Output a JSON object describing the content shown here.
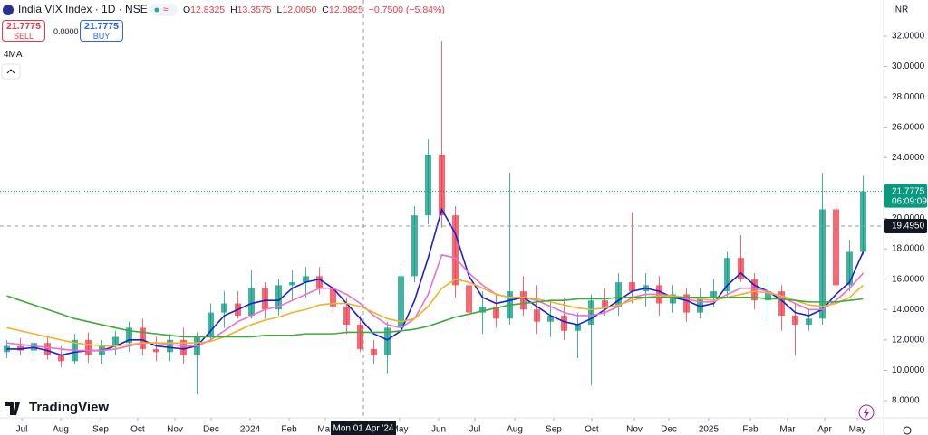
{
  "header": {
    "symbol": "India VIX Index · 1D · NSE",
    "ohlc": [
      {
        "label": "O",
        "value": "12.8325"
      },
      {
        "label": "H",
        "value": "13.3575"
      },
      {
        "label": "L",
        "value": "12.0050"
      },
      {
        "label": "C",
        "value": "12.0825"
      }
    ],
    "change": "−0.7500 (−5.84%)"
  },
  "trade": {
    "sell_price": "21.7775",
    "sell": "SELL",
    "spread": "0.0000",
    "buy_price": "21.7775",
    "buy": "BUY"
  },
  "indicator": "4MA",
  "currency": "INR",
  "logo": "TradingView",
  "chart_data": {
    "type": "candlestick",
    "up_color": "#089981",
    "down_color": "#f23645",
    "grid": false,
    "open": [
      11.2,
      11.6,
      11.3,
      11.8,
      11.0,
      10.6,
      12.0,
      11.0,
      11.6,
      11.8,
      12.8,
      11.4,
      11.2,
      12.0,
      11.0,
      12.2,
      13.8,
      14.4,
      13.6,
      15.4,
      14.0,
      15.6,
      15.8,
      16.2,
      15.4,
      14.2,
      13.0,
      11.4,
      11.0,
      12.8,
      16.2,
      20.2,
      24.2,
      20.2,
      15.6,
      13.8,
      14.2,
      13.4,
      15.2,
      14.0,
      13.2,
      13.6,
      12.6,
      13.0,
      14.6,
      14.2,
      15.8,
      15.2,
      15.6,
      14.4,
      15.0,
      13.8,
      14.8,
      15.2,
      17.4,
      16.0,
      14.6,
      15.2,
      13.6,
      13.0,
      13.4,
      20.6,
      15.6,
      17.8
    ],
    "high": [
      12.0,
      12.1,
      12.0,
      12.3,
      11.6,
      12.4,
      12.5,
      12.0,
      12.6,
      13.2,
      13.4,
      12.2,
      12.4,
      12.8,
      12.5,
      14.4,
      15.2,
      15.2,
      16.6,
      15.8,
      16.0,
      16.6,
      16.8,
      16.8,
      15.8,
      14.8,
      13.6,
      12.0,
      13.2,
      16.8,
      20.8,
      25.2,
      31.7,
      20.8,
      16.4,
      15.2,
      15.0,
      23.0,
      16.2,
      15.6,
      14.6,
      14.8,
      13.8,
      15.0,
      15.4,
      16.4,
      20.4,
      16.4,
      16.2,
      15.6,
      15.4,
      15.4,
      16.0,
      17.8,
      18.9,
      16.4,
      16.2,
      15.6,
      14.4,
      14.0,
      23.0,
      21.2,
      18.6,
      22.8
    ],
    "low": [
      10.8,
      11.0,
      10.8,
      10.7,
      10.2,
      10.4,
      10.5,
      10.4,
      11.0,
      11.2,
      11.0,
      10.6,
      10.6,
      10.4,
      8.4,
      12.0,
      12.8,
      13.4,
      13.4,
      13.4,
      13.6,
      14.6,
      14.8,
      15.0,
      13.6,
      12.4,
      11.2,
      10.4,
      9.8,
      12.6,
      15.8,
      19.6,
      19.4,
      14.8,
      13.2,
      12.4,
      12.8,
      13.0,
      13.6,
      12.4,
      12.2,
      12.0,
      10.8,
      9.0,
      13.6,
      13.6,
      14.4,
      14.2,
      13.6,
      13.8,
      13.2,
      13.4,
      14.2,
      14.8,
      15.8,
      14.0,
      13.2,
      12.6,
      11.0,
      12.6,
      13.0,
      15.0,
      15.2,
      17.6
    ],
    "close": [
      11.6,
      11.3,
      11.8,
      11.0,
      10.6,
      12.0,
      11.0,
      11.6,
      12.2,
      12.8,
      11.4,
      11.2,
      12.0,
      11.0,
      12.2,
      13.8,
      14.4,
      13.6,
      15.4,
      14.0,
      15.6,
      15.8,
      16.2,
      15.4,
      14.2,
      13.0,
      11.4,
      11.0,
      12.8,
      16.2,
      20.2,
      24.2,
      20.2,
      15.6,
      13.8,
      14.2,
      13.4,
      15.2,
      14.0,
      13.2,
      13.6,
      12.6,
      13.0,
      14.6,
      14.2,
      15.8,
      15.2,
      15.6,
      14.4,
      15.0,
      13.8,
      14.8,
      15.2,
      17.4,
      16.0,
      14.6,
      15.2,
      13.6,
      13.0,
      13.4,
      20.6,
      15.6,
      17.8,
      21.7775
    ],
    "overlays": [
      {
        "color": "#1a1fd6",
        "values": [
          11.4,
          11.4,
          11.5,
          11.3,
          11.0,
          11.2,
          11.3,
          11.3,
          11.6,
          12.0,
          12.0,
          11.6,
          11.5,
          11.4,
          11.6,
          12.6,
          13.6,
          14.0,
          14.4,
          14.6,
          14.6,
          15.4,
          15.8,
          16.0,
          15.4,
          14.4,
          13.4,
          12.4,
          12.0,
          12.6,
          14.6,
          17.4,
          20.6,
          19.0,
          16.2,
          14.8,
          14.4,
          14.6,
          14.8,
          14.2,
          13.6,
          13.2,
          13.0,
          13.4,
          14.0,
          14.6,
          15.2,
          15.4,
          15.2,
          14.8,
          14.6,
          14.2,
          14.4,
          15.6,
          16.4,
          15.6,
          15.2,
          14.6,
          13.8,
          13.6,
          14.0,
          15.0,
          15.8,
          17.8
        ]
      },
      {
        "color": "#ec6fd2",
        "values": [
          11.8,
          11.7,
          11.6,
          11.5,
          11.4,
          11.3,
          11.3,
          11.3,
          11.4,
          11.6,
          11.8,
          11.8,
          11.7,
          11.6,
          11.6,
          12.0,
          12.6,
          13.2,
          13.6,
          14.0,
          14.2,
          14.6,
          15.0,
          15.4,
          15.4,
          15.0,
          14.4,
          13.6,
          13.0,
          12.8,
          13.4,
          15.0,
          17.6,
          17.4,
          16.4,
          15.6,
          15.0,
          14.8,
          14.8,
          14.6,
          14.2,
          13.8,
          13.6,
          13.6,
          13.8,
          14.2,
          14.8,
          15.0,
          15.0,
          14.9,
          14.7,
          14.5,
          14.5,
          15.0,
          15.4,
          15.4,
          15.2,
          14.8,
          14.4,
          14.0,
          14.0,
          14.6,
          15.4,
          16.4
        ]
      },
      {
        "color": "#efb22c",
        "values": [
          12.8,
          12.6,
          12.4,
          12.2,
          12.0,
          11.8,
          11.7,
          11.6,
          11.6,
          11.7,
          11.8,
          11.8,
          11.8,
          11.8,
          11.8,
          11.9,
          12.2,
          12.6,
          13.0,
          13.3,
          13.5,
          13.8,
          14.0,
          14.3,
          14.4,
          14.4,
          14.2,
          13.8,
          13.4,
          13.2,
          13.4,
          14.2,
          15.4,
          16.0,
          15.8,
          15.4,
          15.0,
          14.8,
          14.8,
          14.7,
          14.5,
          14.3,
          14.1,
          14.0,
          14.1,
          14.3,
          14.6,
          14.8,
          14.9,
          14.9,
          14.8,
          14.7,
          14.6,
          14.8,
          15.0,
          15.2,
          15.1,
          14.9,
          14.6,
          14.3,
          14.2,
          14.4,
          14.8,
          15.6
        ]
      },
      {
        "color": "#3fa93a",
        "values": [
          14.9,
          14.6,
          14.3,
          14.0,
          13.7,
          13.4,
          13.2,
          13.0,
          12.8,
          12.6,
          12.5,
          12.4,
          12.3,
          12.2,
          12.2,
          12.2,
          12.2,
          12.2,
          12.2,
          12.3,
          12.3,
          12.3,
          12.4,
          12.4,
          12.4,
          12.5,
          12.5,
          12.5,
          12.5,
          12.6,
          12.7,
          12.9,
          13.2,
          13.5,
          13.7,
          13.9,
          14.1,
          14.3,
          14.4,
          14.5,
          14.6,
          14.6,
          14.7,
          14.7,
          14.7,
          14.8,
          14.8,
          14.8,
          14.8,
          14.8,
          14.8,
          14.8,
          14.8,
          14.8,
          14.8,
          14.8,
          14.7,
          14.7,
          14.6,
          14.5,
          14.5,
          14.5,
          14.6,
          14.7
        ]
      }
    ],
    "xlim": [
      0,
      65
    ],
    "xticks": [
      {
        "value": 1.6,
        "label": "Jul"
      },
      {
        "value": 4.47,
        "label": "Aug"
      },
      {
        "value": 7.4,
        "label": "Sep"
      },
      {
        "value": 10.13,
        "label": "Oct"
      },
      {
        "value": 12.87,
        "label": "Nov"
      },
      {
        "value": 15.53,
        "label": "Dec"
      },
      {
        "value": 18.4,
        "label": "2024"
      },
      {
        "value": 21.27,
        "label": "Feb"
      },
      {
        "value": 23.93,
        "label": "Mar"
      },
      {
        "value": 29.4,
        "label": "May"
      },
      {
        "value": 32.27,
        "label": "Jun"
      },
      {
        "value": 34.93,
        "label": "Jul"
      },
      {
        "value": 37.87,
        "label": "Aug"
      },
      {
        "value": 40.73,
        "label": "Sep"
      },
      {
        "value": 43.53,
        "label": "Oct"
      },
      {
        "value": 46.67,
        "label": "Nov"
      },
      {
        "value": 49.2,
        "label": "Dec"
      },
      {
        "value": 52.13,
        "label": "2025"
      },
      {
        "value": 55.2,
        "label": "Feb"
      },
      {
        "value": 57.93,
        "label": "Mar"
      },
      {
        "value": 60.67,
        "label": "Apr"
      },
      {
        "value": 63.07,
        "label": "May"
      }
    ],
    "ylim": [
      6.87,
      34.38
    ],
    "yticks": [
      {
        "value": 8,
        "label": "8.0000"
      },
      {
        "value": 10,
        "label": "10.0000"
      },
      {
        "value": 12,
        "label": "12.0000"
      },
      {
        "value": 14,
        "label": "14.0000"
      },
      {
        "value": 16,
        "label": "16.0000"
      },
      {
        "value": 18,
        "label": "18.0000"
      },
      {
        "value": 20,
        "label": "20.0000"
      },
      {
        "value": 22,
        "label": "22.0000"
      },
      {
        "value": 24,
        "label": "24.0000"
      },
      {
        "value": 26,
        "label": "26.0000"
      },
      {
        "value": 28,
        "label": "28.0000"
      },
      {
        "value": 30,
        "label": "30.0000"
      },
      {
        "value": 32,
        "label": "32.0000"
      }
    ],
    "last_price": 21.7775,
    "countdown": "06:09:09",
    "crosshair_value": {
      "value": 19.495,
      "label": "19.4950"
    },
    "crosshair_label": "Mon 01 Apr '24"
  }
}
